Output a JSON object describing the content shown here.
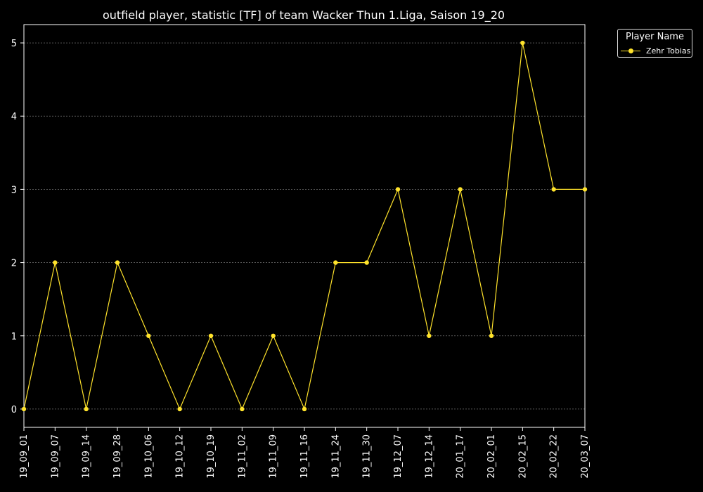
{
  "chart_data": {
    "type": "line",
    "title": "outfield player, statistic [TF] of team Wacker Thun 1.Liga, Saison 19_20",
    "xlabel": "",
    "ylabel": "",
    "categories": [
      "19_09_01",
      "19_09_07",
      "19_09_14",
      "19_09_28",
      "19_10_06",
      "19_10_12",
      "19_10_19",
      "19_11_02",
      "19_11_09",
      "19_11_16",
      "19_11_24",
      "19_11_30",
      "19_12_07",
      "19_12_14",
      "20_01_17",
      "20_02_01",
      "20_02_15",
      "20_02_22",
      "20_03_07"
    ],
    "series": [
      {
        "name": "Zehr Tobias",
        "color": "#ffe32b",
        "values": [
          0,
          2,
          0,
          2,
          1,
          0,
          1,
          0,
          1,
          0,
          2,
          2,
          3,
          1,
          3,
          1,
          5,
          3,
          3
        ]
      }
    ],
    "yticks": [
      0,
      1,
      2,
      3,
      4,
      5
    ],
    "ylim": [
      -0.25,
      5.25
    ],
    "grid": true,
    "legend": {
      "title": "Player Name",
      "placement": "outside-top-right"
    },
    "background": "#000000",
    "text_color": "#ffffff"
  }
}
